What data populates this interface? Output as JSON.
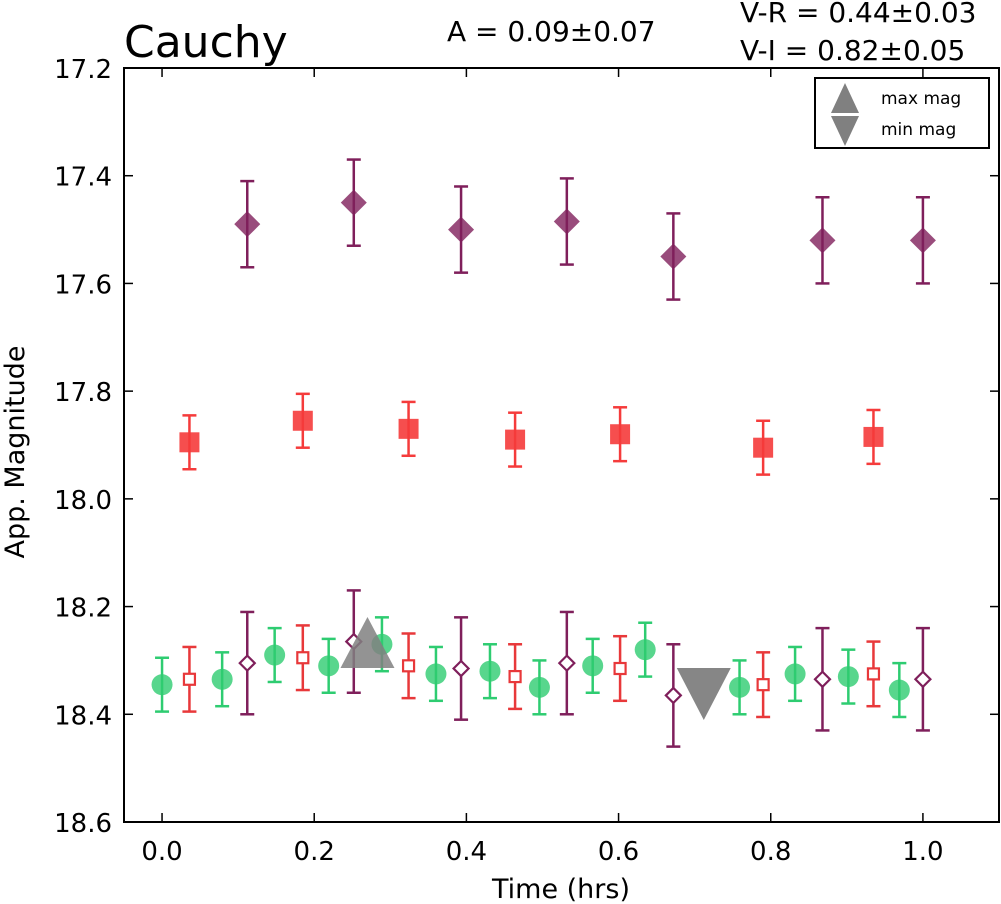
{
  "chart_data": {
    "type": "scatter",
    "title": "Cauchy",
    "annotations": {
      "amplitude": "A  = 0.09±0.07",
      "v_r": "V-R = 0.44±0.03",
      "v_i": "V-I  = 0.82±0.05"
    },
    "xlabel": "Time (hrs)",
    "ylabel": "App. Magnitude",
    "xlim": [
      -0.05,
      1.1
    ],
    "ylim": [
      18.6,
      17.2
    ],
    "y_inverted": true,
    "grid": false,
    "legend_position": "top-right",
    "x_ticks": [
      "0.0",
      "0.2",
      "0.4",
      "0.6",
      "0.8",
      "1.0"
    ],
    "y_ticks": [
      "17.2",
      "17.4",
      "17.6",
      "17.8",
      "18.0",
      "18.2",
      "18.4",
      "18.6"
    ],
    "series": [
      {
        "marker": "diamond-filled",
        "color": "#7f1f5b",
        "points": [
          {
            "x": 0.112,
            "y": 17.49,
            "err": 0.08
          },
          {
            "x": 0.252,
            "y": 17.45,
            "err": 0.08
          },
          {
            "x": 0.393,
            "y": 17.5,
            "err": 0.08
          },
          {
            "x": 0.532,
            "y": 17.485,
            "err": 0.08
          },
          {
            "x": 0.672,
            "y": 17.55,
            "err": 0.08
          },
          {
            "x": 0.868,
            "y": 17.52,
            "err": 0.08
          },
          {
            "x": 1.0,
            "y": 17.52,
            "err": 0.08
          }
        ]
      },
      {
        "marker": "square-filled",
        "color": "#f53b3b",
        "points": [
          {
            "x": 0.036,
            "y": 17.895,
            "err": 0.05
          },
          {
            "x": 0.185,
            "y": 17.855,
            "err": 0.05
          },
          {
            "x": 0.324,
            "y": 17.87,
            "err": 0.05
          },
          {
            "x": 0.464,
            "y": 17.89,
            "err": 0.05
          },
          {
            "x": 0.602,
            "y": 17.88,
            "err": 0.05
          },
          {
            "x": 0.79,
            "y": 17.905,
            "err": 0.05
          },
          {
            "x": 0.935,
            "y": 17.885,
            "err": 0.05
          }
        ]
      },
      {
        "marker": "circle-filled",
        "color": "#2ecc71",
        "points": [
          {
            "x": 0.0,
            "y": 18.345,
            "err": 0.05
          },
          {
            "x": 0.079,
            "y": 18.335,
            "err": 0.05
          },
          {
            "x": 0.148,
            "y": 18.29,
            "err": 0.05
          },
          {
            "x": 0.219,
            "y": 18.31,
            "err": 0.05
          },
          {
            "x": 0.289,
            "y": 18.27,
            "err": 0.05
          },
          {
            "x": 0.36,
            "y": 18.325,
            "err": 0.05
          },
          {
            "x": 0.431,
            "y": 18.32,
            "err": 0.05
          },
          {
            "x": 0.496,
            "y": 18.35,
            "err": 0.05
          },
          {
            "x": 0.566,
            "y": 18.31,
            "err": 0.05
          },
          {
            "x": 0.635,
            "y": 18.28,
            "err": 0.05
          },
          {
            "x": 0.759,
            "y": 18.35,
            "err": 0.05
          },
          {
            "x": 0.832,
            "y": 18.325,
            "err": 0.05
          },
          {
            "x": 0.902,
            "y": 18.33,
            "err": 0.05
          },
          {
            "x": 0.969,
            "y": 18.355,
            "err": 0.05
          }
        ]
      },
      {
        "marker": "square-open",
        "color": "#e8383a",
        "points": [
          {
            "x": 0.036,
            "y": 18.335,
            "err": 0.06
          },
          {
            "x": 0.185,
            "y": 18.295,
            "err": 0.06
          },
          {
            "x": 0.324,
            "y": 18.31,
            "err": 0.06
          },
          {
            "x": 0.464,
            "y": 18.33,
            "err": 0.06
          },
          {
            "x": 0.602,
            "y": 18.315,
            "err": 0.06
          },
          {
            "x": 0.79,
            "y": 18.345,
            "err": 0.06
          },
          {
            "x": 0.935,
            "y": 18.325,
            "err": 0.06
          }
        ]
      },
      {
        "marker": "diamond-open",
        "color": "#7f1f5b",
        "points": [
          {
            "x": 0.112,
            "y": 18.305,
            "err": 0.095
          },
          {
            "x": 0.252,
            "y": 18.265,
            "err": 0.095
          },
          {
            "x": 0.393,
            "y": 18.315,
            "err": 0.095
          },
          {
            "x": 0.532,
            "y": 18.305,
            "err": 0.095
          },
          {
            "x": 0.672,
            "y": 18.365,
            "err": 0.095
          },
          {
            "x": 0.868,
            "y": 18.335,
            "err": 0.095
          },
          {
            "x": 1.0,
            "y": 18.335,
            "err": 0.095
          }
        ]
      }
    ],
    "extrema": [
      {
        "label": "max mag",
        "marker": "triangle-up",
        "color": "#808080",
        "x": 0.27,
        "y": 18.275
      },
      {
        "label": "min mag",
        "marker": "triangle-down",
        "color": "#808080",
        "x": 0.712,
        "y": 18.355
      }
    ],
    "legend": [
      "max mag",
      "min mag"
    ]
  }
}
